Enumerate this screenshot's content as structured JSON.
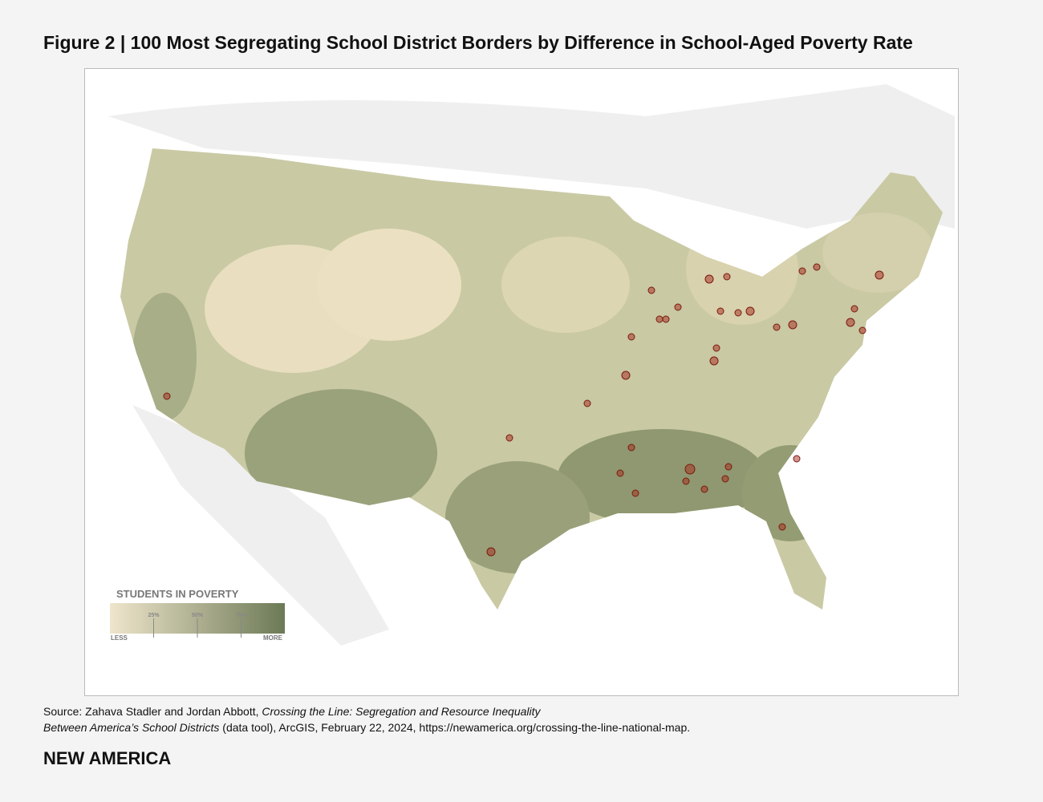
{
  "header": {
    "title": "Figure 2 | 100 Most Segregating School District Borders by Difference in School-Aged Poverty Rate"
  },
  "legend": {
    "title": "STUDENTS IN POVERTY",
    "low_label": "LESS",
    "high_label": "MORE",
    "lim": [
      0,
      100
    ],
    "ticks": [
      {
        "value": 25,
        "label": "25%"
      },
      {
        "value": 50,
        "label": "50%"
      },
      {
        "value": 75,
        "label": "75%"
      }
    ],
    "colors": [
      "#efe5cb",
      "#6c7a56"
    ]
  },
  "source": {
    "prefix": "Source: Zahava Stadler and Jordan Abbott, ",
    "title_line1": "Crossing the Line: Segregation and Resource Inequality",
    "title_line2": "Between America’s School Districts",
    "suffix": " (data tool), ArcGIS, February 22, 2024, https://newamerica.org/crossing-the-line-national-map."
  },
  "footer": {
    "brand": "NEW AMERICA"
  }
}
